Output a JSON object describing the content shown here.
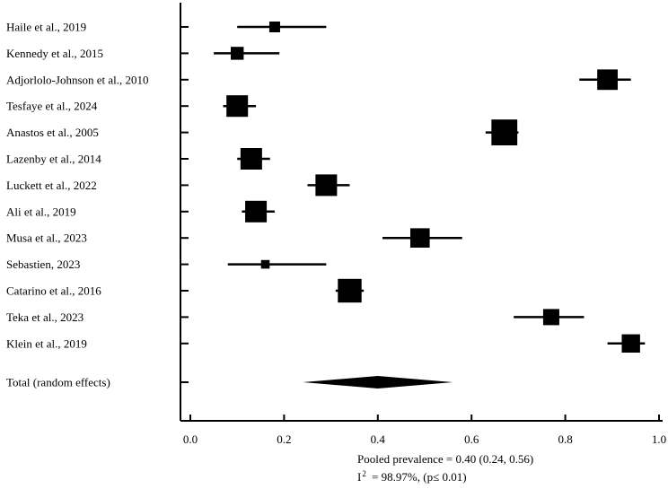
{
  "chart_data": {
    "type": "forest",
    "xlabel": "",
    "ylabel": "",
    "xlim": [
      0.0,
      1.0
    ],
    "xticks": [
      "0.0",
      "0.2",
      "0.4",
      "0.6",
      "0.8",
      "1.0"
    ],
    "tick_values": [
      0.0,
      0.2,
      0.4,
      0.6,
      0.8,
      1.0
    ],
    "studies": [
      {
        "label": "Haile et al., 2019",
        "estimate": 0.18,
        "lower": 0.1,
        "upper": 0.29,
        "weight": 0.5
      },
      {
        "label": "Kennedy et al., 2015",
        "estimate": 0.1,
        "lower": 0.05,
        "upper": 0.19,
        "weight": 0.6
      },
      {
        "label": "Adjorlolo-Johnson et al., 2010",
        "estimate": 0.89,
        "lower": 0.83,
        "upper": 0.94,
        "weight": 0.95
      },
      {
        "label": "Tesfaye et al., 2024",
        "estimate": 0.1,
        "lower": 0.07,
        "upper": 0.14,
        "weight": 1.0
      },
      {
        "label": "Anastos et al., 2005",
        "estimate": 0.67,
        "lower": 0.63,
        "upper": 0.7,
        "weight": 1.2
      },
      {
        "label": "Lazenby et al., 2014",
        "estimate": 0.13,
        "lower": 0.1,
        "upper": 0.17,
        "weight": 1.0
      },
      {
        "label": "Luckett et al., 2022",
        "estimate": 0.29,
        "lower": 0.25,
        "upper": 0.34,
        "weight": 1.0
      },
      {
        "label": "Ali et al., 2019",
        "estimate": 0.14,
        "lower": 0.11,
        "upper": 0.18,
        "weight": 1.0
      },
      {
        "label": "Musa et al., 2023",
        "estimate": 0.49,
        "lower": 0.41,
        "upper": 0.58,
        "weight": 0.9
      },
      {
        "label": "Sebastien, 2023",
        "estimate": 0.16,
        "lower": 0.08,
        "upper": 0.29,
        "weight": 0.4
      },
      {
        "label": "Catarino et al., 2016",
        "estimate": 0.34,
        "lower": 0.31,
        "upper": 0.37,
        "weight": 1.1
      },
      {
        "label": "Teka et al., 2023",
        "estimate": 0.77,
        "lower": 0.69,
        "upper": 0.84,
        "weight": 0.75
      },
      {
        "label": "Klein et al., 2019",
        "estimate": 0.94,
        "lower": 0.89,
        "upper": 0.97,
        "weight": 0.85
      }
    ],
    "total": {
      "label": "Total (random effects)",
      "estimate": 0.4,
      "lower": 0.24,
      "upper": 0.56
    },
    "pooled_text": "Pooled prevalence = 0.40 (0.24, 0.56)",
    "heterogeneity": {
      "symbol": "I",
      "exponent": "2",
      "text": " = 98.97%, (p≤ 0.01)"
    }
  }
}
